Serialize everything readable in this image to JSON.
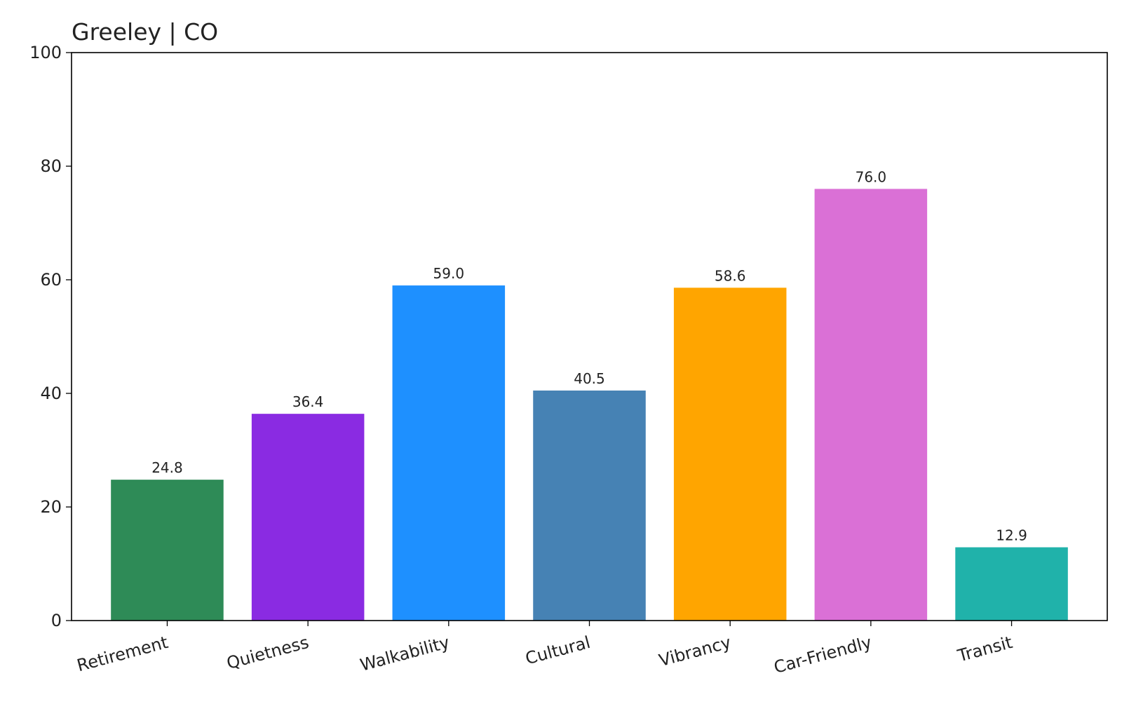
{
  "chart_data": {
    "type": "bar",
    "title": "Greeley | CO",
    "xlabel": "",
    "ylabel": "",
    "categories": [
      "Retirement",
      "Quietness",
      "Walkability",
      "Cultural",
      "Vibrancy",
      "Car-Friendly",
      "Transit"
    ],
    "values": [
      24.8,
      36.4,
      59.0,
      40.5,
      58.6,
      76.0,
      12.9
    ],
    "value_labels": [
      "24.8",
      "36.4",
      "59.0",
      "40.5",
      "58.6",
      "76.0",
      "12.9"
    ],
    "colors": [
      "#2e8b57",
      "#8a2be2",
      "#1e90ff",
      "#4682b4",
      "#ffa500",
      "#da70d6",
      "#20b2aa"
    ],
    "ylim": [
      0,
      100
    ],
    "yticks": [
      0,
      20,
      40,
      60,
      80,
      100
    ],
    "ytick_labels": [
      "0",
      "20",
      "40",
      "60",
      "80",
      "100"
    ],
    "grid": false,
    "legend": "none"
  }
}
